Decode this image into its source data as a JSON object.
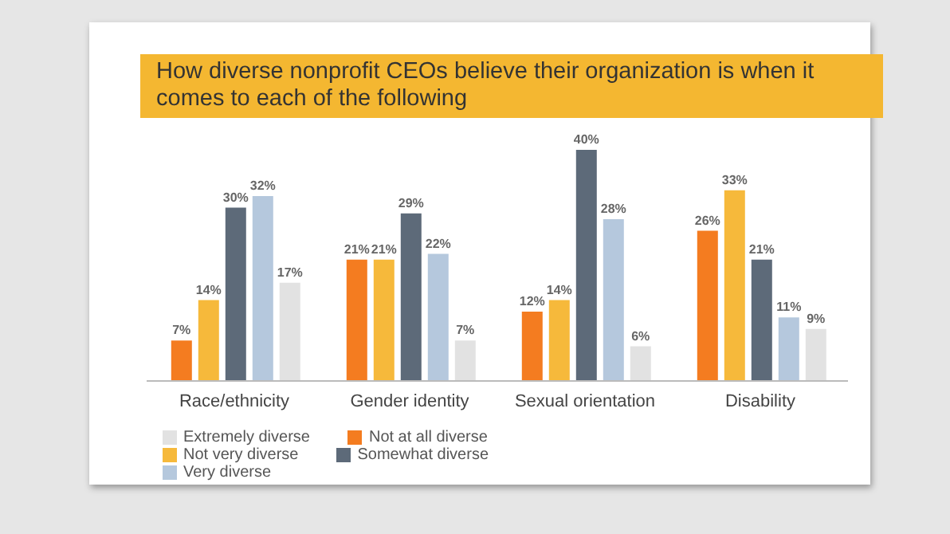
{
  "chart_data": {
    "type": "bar",
    "title": "How diverse nonprofit CEOs believe their organization is when it comes to each of the following",
    "categories": [
      "Race/ethnicity",
      "Gender identity",
      "Sexual orientation",
      "Disability"
    ],
    "series": [
      {
        "name": "Not at all diverse",
        "color": "#f47c20",
        "values": [
          7,
          21,
          12,
          26
        ],
        "value_labels": [
          "7%",
          "21%",
          "12%",
          "26%"
        ]
      },
      {
        "name": "Not very diverse",
        "color": "#f6b93b",
        "values": [
          14,
          21,
          14,
          33
        ],
        "value_labels": [
          "14%",
          "21%",
          "14%",
          "33%"
        ]
      },
      {
        "name": "Somewhat diverse",
        "color": "#5d6a79",
        "values": [
          30,
          29,
          40,
          21
        ],
        "value_labels": [
          "30%",
          "29%",
          "40%",
          "21%"
        ]
      },
      {
        "name": "Very diverse",
        "color": "#b5c8dd",
        "values": [
          32,
          22,
          28,
          11
        ],
        "value_labels": [
          "32%",
          "22%",
          "28%",
          "11%"
        ]
      },
      {
        "name": "Extremely diverse",
        "color": "#e2e2e2",
        "values": [
          17,
          7,
          6,
          9
        ],
        "value_labels": [
          "17%",
          "7%",
          "6%",
          "9%"
        ]
      }
    ],
    "legend": "bottom left",
    "grid": false
  }
}
